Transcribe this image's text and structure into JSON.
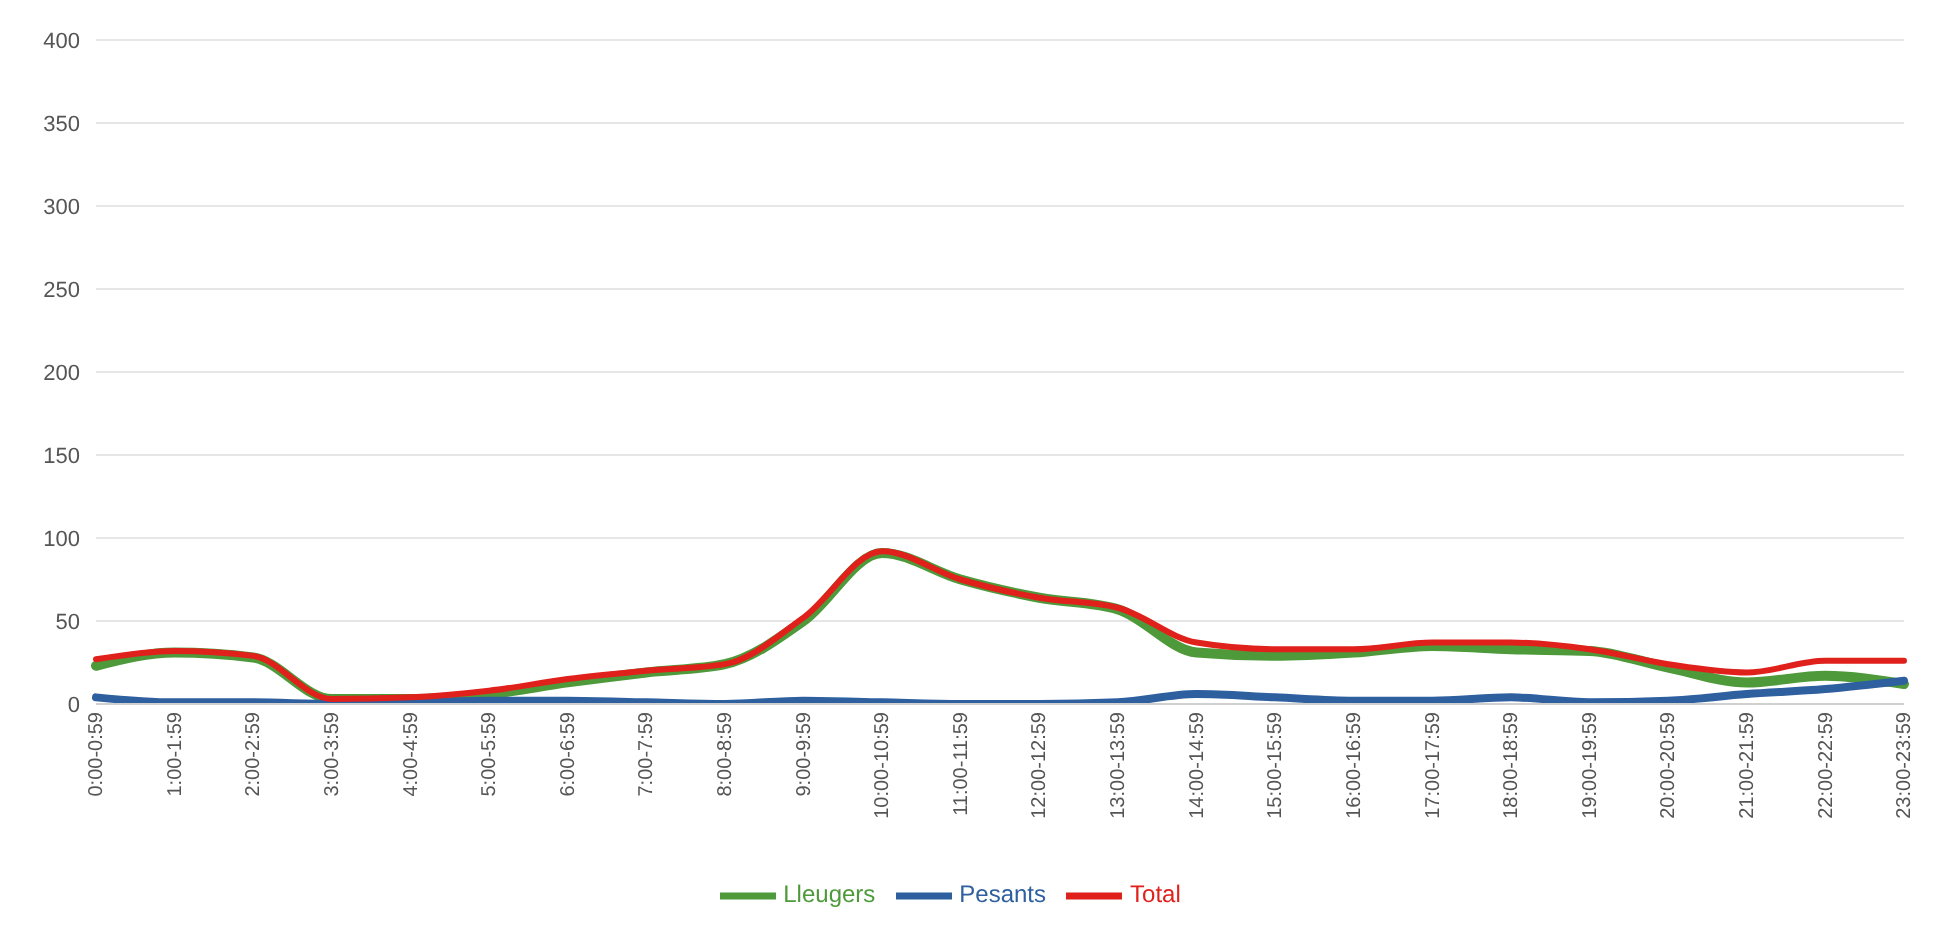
{
  "chart_data": {
    "type": "line",
    "categories": [
      "0:00-0:59",
      "1:00-1:59",
      "2:00-2:59",
      "3:00-3:59",
      "4:00-4:59",
      "5:00-5:59",
      "6:00-6:59",
      "7:00-7:59",
      "8:00-8:59",
      "9:00-9:59",
      "10:00-10:59",
      "11:00-11:59",
      "12:00-12:59",
      "13:00-13:59",
      "14:00-14:59",
      "15:00-15:59",
      "16:00-16:59",
      "17:00-17:59",
      "18:00-18:59",
      "19:00-19:59",
      "20:00-20:59",
      "21:00-21:59",
      "22:00-22:59",
      "23:00-23:59"
    ],
    "series": [
      {
        "name": "Lleugers",
        "color": "#4e9a3a",
        "values": [
          23,
          31,
          28,
          3,
          3,
          6,
          13,
          19,
          24,
          50,
          91,
          75,
          64,
          57,
          31,
          29,
          31,
          35,
          33,
          32,
          22,
          13,
          17,
          12
        ]
      },
      {
        "name": "Pesants",
        "color": "#2e5f9e",
        "values": [
          4,
          1,
          1,
          0,
          1,
          2,
          2,
          1,
          0,
          2,
          1,
          0,
          0,
          1,
          6,
          4,
          2,
          2,
          4,
          1,
          2,
          6,
          9,
          14
        ]
      },
      {
        "name": "Total",
        "color": "#e0201b",
        "values": [
          27,
          32,
          29,
          3,
          4,
          8,
          15,
          20,
          24,
          52,
          92,
          75,
          64,
          58,
          37,
          33,
          33,
          37,
          37,
          33,
          24,
          19,
          26,
          26
        ]
      }
    ],
    "ylim": [
      0,
      400
    ],
    "yticks": [
      0,
      50,
      100,
      150,
      200,
      250,
      300,
      350,
      400
    ],
    "grid": "y",
    "legend": "bottom",
    "marker": "none",
    "line_style": "solid"
  }
}
